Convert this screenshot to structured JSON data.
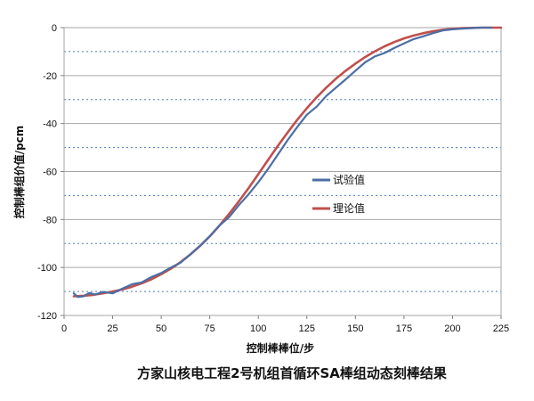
{
  "chart_data": {
    "type": "line",
    "title": "方家山核电工程2号机组首循环SA棒组动态刻棒结果",
    "xlabel": "控制棒棒位/步",
    "ylabel": "控制棒组价值/pcm",
    "xlim": [
      0,
      225
    ],
    "ylim": [
      -120,
      0
    ],
    "x_ticks": [
      0,
      25,
      50,
      75,
      100,
      125,
      150,
      175,
      200,
      225
    ],
    "y_ticks": [
      0,
      -20,
      -40,
      -60,
      -80,
      -100,
      -120
    ],
    "y_tick_labels": [
      "0",
      "-20",
      "-40",
      "-60",
      "-80",
      "-100",
      "-120"
    ],
    "grid": "horizontal solid at major ticks, dotted at midpoints",
    "legend_position": "center-right",
    "series": [
      {
        "name": "试验值",
        "color": "#4a6fa5",
        "x": [
          5,
          7,
          10,
          13,
          16,
          20,
          25,
          30,
          35,
          40,
          45,
          50,
          55,
          60,
          65,
          70,
          75,
          80,
          85,
          90,
          95,
          100,
          105,
          110,
          115,
          120,
          125,
          130,
          135,
          140,
          145,
          150,
          155,
          160,
          165,
          170,
          175,
          180,
          185,
          190,
          195,
          200,
          205,
          210,
          215,
          220
        ],
        "y": [
          -110.8,
          -112.3,
          -112.0,
          -110.6,
          -111.3,
          -110.2,
          -110.8,
          -108.8,
          -107.0,
          -106.2,
          -104.0,
          -102.3,
          -100.0,
          -98.0,
          -94.5,
          -91.0,
          -87.0,
          -82.5,
          -79.0,
          -74.0,
          -69.5,
          -64.5,
          -59.0,
          -53.0,
          -47.0,
          -41.5,
          -36.3,
          -33.0,
          -28.5,
          -25.0,
          -21.6,
          -18.0,
          -14.5,
          -12.0,
          -10.6,
          -8.5,
          -6.6,
          -4.8,
          -3.6,
          -2.3,
          -1.2,
          -0.7,
          -0.4,
          -0.2,
          0.0,
          0.0
        ]
      },
      {
        "name": "理论值",
        "color": "#c0504d",
        "x": [
          5,
          10,
          15,
          20,
          25,
          30,
          35,
          40,
          45,
          50,
          55,
          60,
          65,
          70,
          75,
          80,
          85,
          90,
          95,
          100,
          105,
          110,
          115,
          120,
          125,
          130,
          135,
          140,
          145,
          150,
          155,
          160,
          165,
          170,
          175,
          180,
          185,
          190,
          195,
          200,
          205,
          210,
          215,
          220,
          225
        ],
        "y": [
          -112.0,
          -111.8,
          -111.4,
          -110.8,
          -110.0,
          -109.2,
          -108.0,
          -106.6,
          -104.9,
          -102.8,
          -100.5,
          -97.8,
          -94.6,
          -91.0,
          -87.0,
          -82.5,
          -77.6,
          -72.4,
          -66.9,
          -61.1,
          -55.2,
          -49.4,
          -43.8,
          -38.5,
          -33.6,
          -29.1,
          -25.0,
          -21.3,
          -18.0,
          -15.0,
          -12.3,
          -9.9,
          -7.8,
          -6.0,
          -4.5,
          -3.3,
          -2.3,
          -1.5,
          -0.9,
          -0.5,
          -0.2,
          -0.1,
          0.0,
          0.0,
          0.0
        ]
      }
    ]
  }
}
